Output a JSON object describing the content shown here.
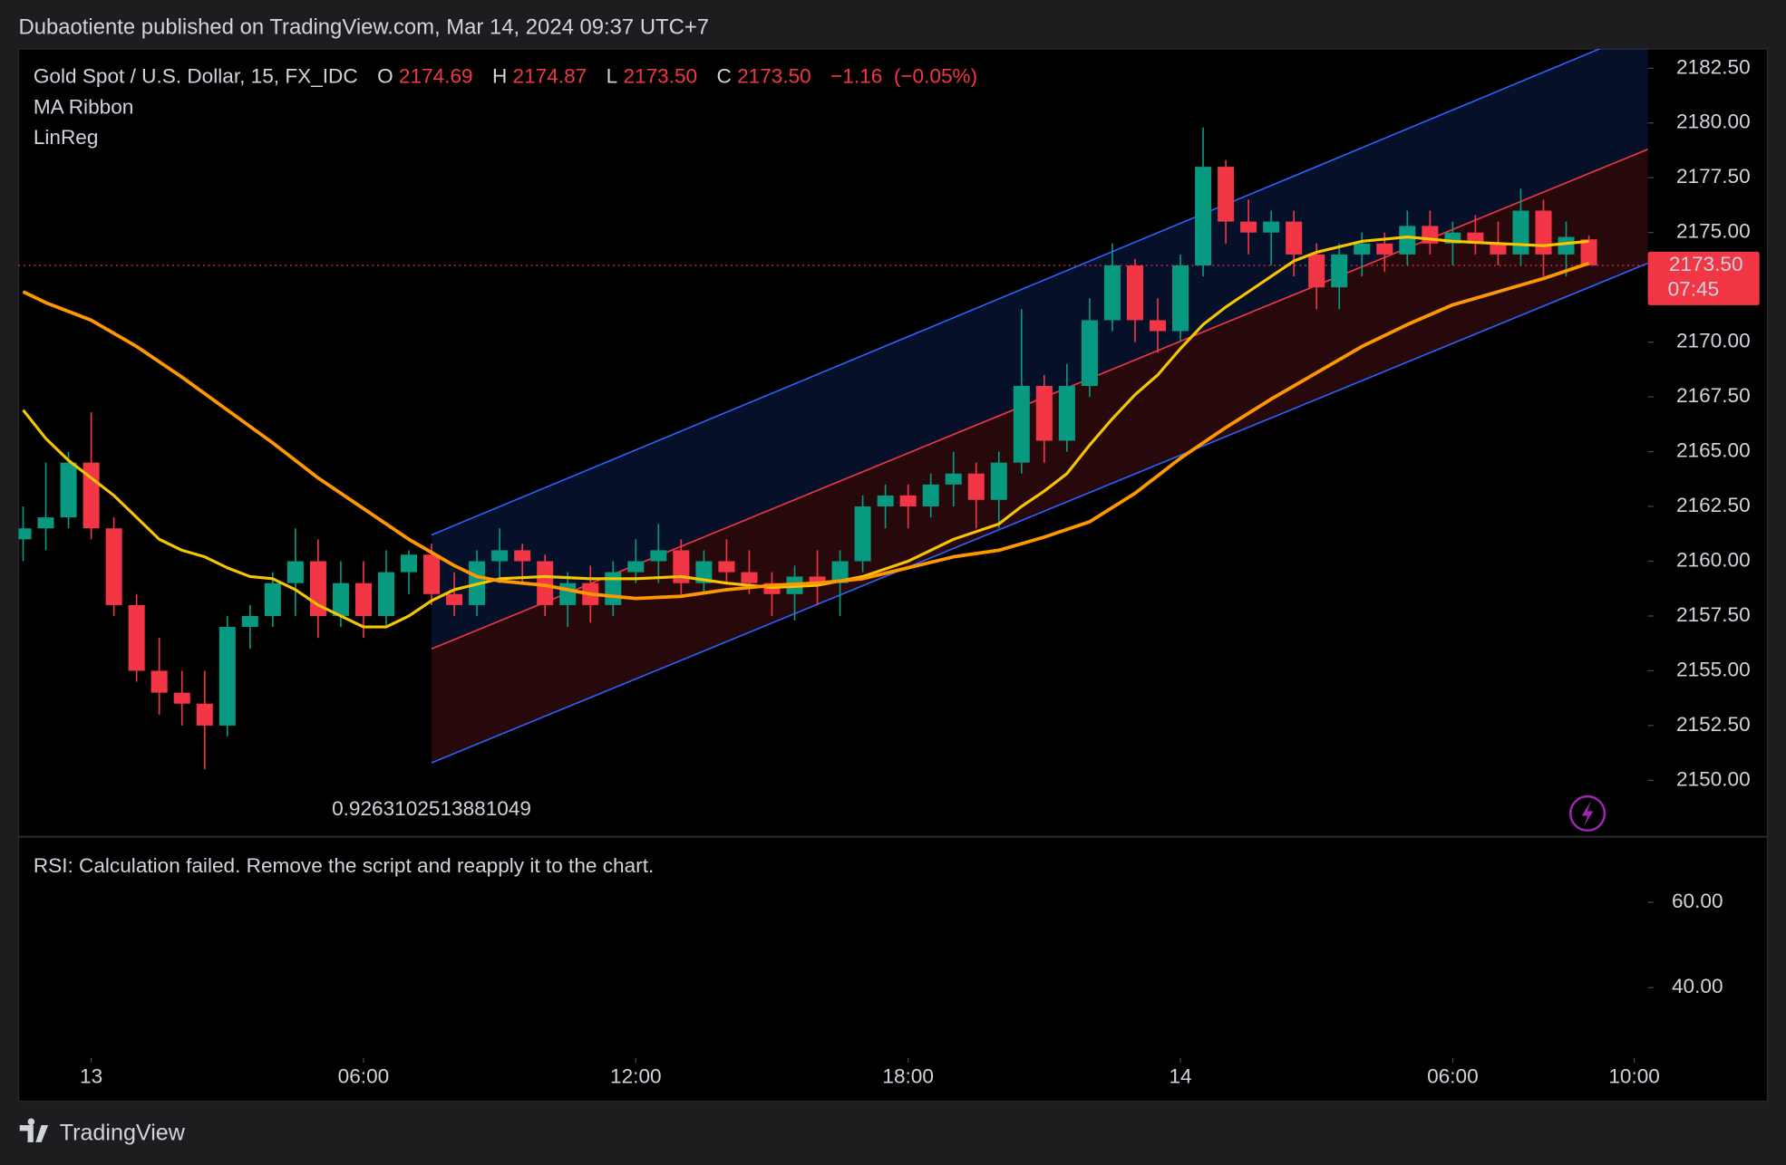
{
  "header": {
    "text": "Dubaotiente published on TradingView.com, Mar 14, 2024 09:37 UTC+7"
  },
  "footer": {
    "brand": "TradingView"
  },
  "chart_data": {
    "type": "candlestick",
    "title": "Gold Spot / U.S. Dollar, 15, FX_IDC",
    "ohlc_legend": {
      "open_key": "O",
      "open": 2174.69,
      "high_key": "H",
      "high": 2174.87,
      "low_key": "L",
      "low": {
        "value": 2173.5,
        "label": "2173.50"
      },
      "close_key": "C",
      "close": {
        "value": 2173.5,
        "label": "2173.50"
      },
      "change": {
        "value": -1.16,
        "label": "−1.16"
      },
      "change_pct": {
        "value": -0.05,
        "label": "(−0.05%)"
      }
    },
    "indicators": [
      "MA Ribbon",
      "LinReg"
    ],
    "up_color": "#089981",
    "down_color": "#f23645",
    "x": [
      -1.5,
      -1,
      -0.5,
      0,
      0.5,
      1,
      1.5,
      2,
      2.5,
      3,
      3.5,
      4,
      4.5,
      5,
      5.5,
      6,
      6.5,
      7,
      7.5,
      8,
      8.5,
      9,
      9.5,
      10,
      10.5,
      11,
      11.5,
      12,
      12.5,
      13,
      13.5,
      14,
      14.5,
      15,
      15.5,
      16,
      16.5,
      17,
      17.5,
      18,
      18.5,
      19,
      19.5,
      20,
      20.5,
      21,
      21.5,
      22,
      22.5,
      23,
      23.5,
      24,
      24.5,
      25,
      25.5,
      26,
      26.5,
      27,
      27.5,
      28,
      28.5,
      29,
      29.5,
      30,
      30.5,
      31,
      31.5,
      32,
      32.5,
      33
    ],
    "open": [
      2161,
      2161.5,
      2162,
      2164.5,
      2161.5,
      2158,
      2155,
      2154,
      2153.5,
      2152.5,
      2157,
      2157.5,
      2159,
      2160,
      2157.5,
      2159,
      2157.5,
      2159.5,
      2160.3,
      2158.5,
      2158,
      2160,
      2160.5,
      2160,
      2158,
      2159,
      2158,
      2159.5,
      2160,
      2160.5,
      2159,
      2160,
      2159.5,
      2159,
      2158.5,
      2159.3,
      2159,
      2160,
      2162.5,
      2163,
      2162.5,
      2163.5,
      2164,
      2162.8,
      2164.5,
      2168,
      2165.5,
      2168,
      2171,
      2173.5,
      2171,
      2170.5,
      2173.5,
      2178,
      2175.5,
      2175,
      2175.5,
      2174,
      2172.5,
      2174,
      2174.5,
      2174,
      2175.3,
      2174.5,
      2175,
      2174.5,
      2174,
      2176,
      2174,
      2174.69
    ],
    "high": [
      2162.5,
      2164.5,
      2165,
      2166.8,
      2162,
      2158.5,
      2156.5,
      2155,
      2155,
      2157.5,
      2158,
      2159.5,
      2161.5,
      2161,
      2160,
      2160,
      2160.5,
      2160.5,
      2160.8,
      2159.5,
      2160.5,
      2161.5,
      2160.8,
      2160.3,
      2159.5,
      2159.8,
      2160,
      2161,
      2161.7,
      2161,
      2160.5,
      2161,
      2160.5,
      2159.5,
      2159.8,
      2160.5,
      2160.5,
      2163,
      2163.5,
      2163.5,
      2164,
      2165,
      2164.5,
      2165,
      2171.5,
      2168.5,
      2169,
      2172,
      2174.5,
      2173.8,
      2172,
      2174,
      2179.8,
      2178.3,
      2176.5,
      2176,
      2176,
      2174.5,
      2174.5,
      2175,
      2175,
      2176,
      2176,
      2175.5,
      2175.8,
      2175.5,
      2177,
      2176.5,
      2175.5,
      2174.87
    ],
    "low": [
      2160,
      2160.5,
      2161.5,
      2161,
      2157.5,
      2154.5,
      2153,
      2152.5,
      2150.5,
      2152,
      2156,
      2157,
      2157.5,
      2156.5,
      2157,
      2156.5,
      2157,
      2158.5,
      2158,
      2157.5,
      2157.5,
      2159,
      2159,
      2157.5,
      2157,
      2157.2,
      2157.5,
      2159,
      2159,
      2158.5,
      2158.5,
      2159,
      2158.5,
      2157.5,
      2157.3,
      2158,
      2157.5,
      2159.5,
      2161.5,
      2161.5,
      2162,
      2162.5,
      2161.5,
      2161.5,
      2164,
      2164.5,
      2165,
      2167.5,
      2170.5,
      2170,
      2169.5,
      2170,
      2173,
      2174.5,
      2174,
      2173.5,
      2173,
      2171.5,
      2171.5,
      2173,
      2173.2,
      2173.5,
      2174,
      2173.5,
      2174,
      2173.5,
      2173.5,
      2173,
      2173,
      2173.5
    ],
    "close": [
      2161.5,
      2162,
      2164.5,
      2161.5,
      2158,
      2155,
      2154,
      2153.5,
      2152.5,
      2157,
      2157.5,
      2159,
      2160,
      2157.5,
      2159,
      2157.5,
      2159.5,
      2160.3,
      2158.5,
      2158,
      2160,
      2160.5,
      2160,
      2158,
      2159,
      2158,
      2159.5,
      2160,
      2160.5,
      2159,
      2160,
      2159.5,
      2159,
      2158.5,
      2159.3,
      2159,
      2160,
      2162.5,
      2163,
      2162.5,
      2163.5,
      2164,
      2162.8,
      2164.5,
      2168,
      2165.5,
      2168,
      2171,
      2173.5,
      2171,
      2170.5,
      2173.5,
      2178,
      2175.5,
      2175,
      2175.5,
      2174,
      2172.5,
      2174,
      2174.5,
      2174,
      2175.3,
      2174.5,
      2175,
      2174.5,
      2174,
      2176,
      2174,
      2174.8,
      2173.5
    ],
    "ma_lines": [
      {
        "color": "#f7c600",
        "x": [
          -1.5,
          -1,
          -0.5,
          0,
          0.5,
          1,
          1.5,
          2,
          2.5,
          3,
          3.5,
          4,
          4.5,
          5,
          5.5,
          6,
          6.5,
          7,
          7.5,
          8,
          9,
          10,
          11,
          12,
          13,
          14,
          15,
          16,
          17,
          18,
          19,
          20,
          20.5,
          21,
          21.5,
          22,
          22.5,
          23,
          23.5,
          24,
          24.5,
          25,
          25.5,
          26,
          26.5,
          27,
          28,
          29,
          30,
          31,
          32,
          33
        ],
        "values": [
          2166.9,
          2165.6,
          2164.6,
          2163.8,
          2163,
          2162,
          2161,
          2160.5,
          2160.2,
          2159.7,
          2159.3,
          2159.2,
          2158.7,
          2158,
          2157.5,
          2157,
          2157,
          2157.5,
          2158.2,
          2158.7,
          2159.2,
          2159.3,
          2159.2,
          2159.2,
          2159.3,
          2159,
          2158.8,
          2158.9,
          2159.3,
          2160,
          2161,
          2161.7,
          2162.5,
          2163.2,
          2164,
          2165.3,
          2166.5,
          2167.6,
          2168.5,
          2169.7,
          2170.8,
          2171.6,
          2172.3,
          2173,
          2173.7,
          2174.1,
          2174.6,
          2174.8,
          2174.6,
          2174.5,
          2174.4,
          2174.6
        ]
      },
      {
        "color": "#ff9800",
        "x": [
          -1.5,
          -1,
          0,
          1,
          2,
          3,
          4,
          5,
          6,
          7,
          8,
          8.5,
          9,
          10,
          11,
          12,
          13,
          14,
          15,
          16,
          17,
          18,
          19,
          20,
          21,
          22,
          23,
          24,
          25,
          26,
          27,
          28,
          29,
          30,
          31,
          32,
          33
        ],
        "values": [
          2172.3,
          2171.8,
          2171,
          2169.8,
          2168.4,
          2166.9,
          2165.4,
          2163.8,
          2162.4,
          2161,
          2159.8,
          2159.3,
          2159.1,
          2158.9,
          2158.5,
          2158.3,
          2158.4,
          2158.7,
          2158.9,
          2159,
          2159.2,
          2159.7,
          2160.2,
          2160.5,
          2161.1,
          2161.8,
          2163.1,
          2164.7,
          2166.1,
          2167.4,
          2168.6,
          2169.8,
          2170.8,
          2171.7,
          2172.3,
          2172.9,
          2173.6
        ]
      }
    ],
    "linreg": {
      "x": [
        7.5,
        34.3
      ],
      "upper": [
        2161.2,
        2184.3
      ],
      "middle": [
        2156,
        2178.8
      ],
      "lower": [
        2150.8,
        2173.6
      ],
      "band_color": "#2962ff",
      "mid_color": "#f23645",
      "label": "0.9263102513881049"
    },
    "last_price": {
      "value": 2173.5,
      "label": "2173.50"
    },
    "countdown": "07:45",
    "xlim": [
      -1.6,
      34.3
    ],
    "xticks": [
      {
        "value": 0,
        "label": "13"
      },
      {
        "value": 6,
        "label": "06:00"
      },
      {
        "value": 12,
        "label": "12:00"
      },
      {
        "value": 18,
        "label": "18:00"
      },
      {
        "value": 24,
        "label": "14"
      },
      {
        "value": 30,
        "label": "06:00"
      },
      {
        "value": 34,
        "label": "10:00"
      }
    ],
    "ylim": [
      2147.45,
      2183.38
    ],
    "yticks": [
      {
        "value": 2150,
        "label": "2150.00"
      },
      {
        "value": 2152.5,
        "label": "2152.50"
      },
      {
        "value": 2155,
        "label": "2155.00"
      },
      {
        "value": 2157.5,
        "label": "2157.50"
      },
      {
        "value": 2160,
        "label": "2160.00"
      },
      {
        "value": 2162.5,
        "label": "2162.50"
      },
      {
        "value": 2165,
        "label": "2165.00"
      },
      {
        "value": 2167.5,
        "label": "2167.50"
      },
      {
        "value": 2170,
        "label": "2170.00"
      },
      {
        "value": 2172.5,
        "label": "2172.50"
      },
      {
        "value": 2175,
        "label": "2175.00"
      },
      {
        "value": 2177.5,
        "label": "2177.50"
      },
      {
        "value": 2180,
        "label": "2180.00"
      },
      {
        "value": 2182.5,
        "label": "2182.50"
      }
    ],
    "rsi": {
      "message": "RSI: Calculation failed. Remove the script and reapply it to the chart.",
      "ylim": [
        23.5,
        75.2
      ],
      "yticks": [
        {
          "value": 60,
          "label": "60.00"
        },
        {
          "value": 40,
          "label": "40.00"
        }
      ]
    }
  }
}
